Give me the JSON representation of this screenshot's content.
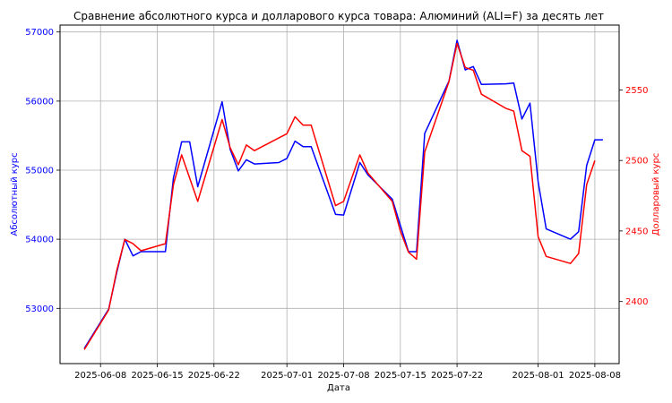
{
  "chart_data": {
    "type": "line",
    "title": "Сравнение абсолютного курса и долларового курса товара: Алюминий (ALI=F) за десять лет",
    "xlabel": "Дата",
    "ylabel_left": "Абсолютный курс",
    "ylabel_right": "Долларовый курс",
    "grid": true,
    "x_ticks": [
      "2025-06-08",
      "2025-06-15",
      "2025-06-22",
      "2025-07-01",
      "2025-07-08",
      "2025-07-15",
      "2025-07-22",
      "2025-08-01",
      "2025-08-08"
    ],
    "y_left_ticks": [
      53000,
      54000,
      55000,
      56000,
      57000
    ],
    "y_right_ticks": [
      2400,
      2450,
      2500,
      2550
    ],
    "y_left_lim": [
      52200,
      57100
    ],
    "y_right_lim": [
      2356,
      2596
    ],
    "series": [
      {
        "name": "Абсолютный курс",
        "axis": "left",
        "color": "#0000ff",
        "points": [
          [
            "2025-06-06",
            52420
          ],
          [
            "2025-06-09",
            52990
          ],
          [
            "2025-06-10",
            53520
          ],
          [
            "2025-06-11",
            54000
          ],
          [
            "2025-06-12",
            53760
          ],
          [
            "2025-06-13",
            53820
          ],
          [
            "2025-06-16",
            53820
          ],
          [
            "2025-06-17",
            54890
          ],
          [
            "2025-06-18",
            55410
          ],
          [
            "2025-06-19",
            55410
          ],
          [
            "2025-06-20",
            54760
          ],
          [
            "2025-06-23",
            55990
          ],
          [
            "2025-06-24",
            55300
          ],
          [
            "2025-06-25",
            54990
          ],
          [
            "2025-06-26",
            55150
          ],
          [
            "2025-06-27",
            55090
          ],
          [
            "2025-06-30",
            55110
          ],
          [
            "2025-07-01",
            55170
          ],
          [
            "2025-07-02",
            55420
          ],
          [
            "2025-07-03",
            55340
          ],
          [
            "2025-07-04",
            55340
          ],
          [
            "2025-07-07",
            54360
          ],
          [
            "2025-07-08",
            54350
          ],
          [
            "2025-07-10",
            55110
          ],
          [
            "2025-07-11",
            54930
          ],
          [
            "2025-07-14",
            54580
          ],
          [
            "2025-07-16",
            53820
          ],
          [
            "2025-07-17",
            53820
          ],
          [
            "2025-07-18",
            55530
          ],
          [
            "2025-07-21",
            56290
          ],
          [
            "2025-07-22",
            56880
          ],
          [
            "2025-07-23",
            56450
          ],
          [
            "2025-07-24",
            56500
          ],
          [
            "2025-07-25",
            56240
          ],
          [
            "2025-07-28",
            56250
          ],
          [
            "2025-07-29",
            56260
          ],
          [
            "2025-07-30",
            55740
          ],
          [
            "2025-07-31",
            55970
          ],
          [
            "2025-08-01",
            54830
          ],
          [
            "2025-08-02",
            54150
          ],
          [
            "2025-08-05",
            54000
          ],
          [
            "2025-08-06",
            54110
          ],
          [
            "2025-08-07",
            55070
          ],
          [
            "2025-08-08",
            55440
          ],
          [
            "2025-08-09",
            55440
          ]
        ]
      },
      {
        "name": "Долларовый курс",
        "axis": "right",
        "color": "#ff0000",
        "points": [
          [
            "2025-06-06",
            2366
          ],
          [
            "2025-06-09",
            2394
          ],
          [
            "2025-06-10",
            2422
          ],
          [
            "2025-06-11",
            2444
          ],
          [
            "2025-06-12",
            2441
          ],
          [
            "2025-06-13",
            2436
          ],
          [
            "2025-06-16",
            2441
          ],
          [
            "2025-06-17",
            2483
          ],
          [
            "2025-06-18",
            2504
          ],
          [
            "2025-06-20",
            2471
          ],
          [
            "2025-06-23",
            2529
          ],
          [
            "2025-06-24",
            2509
          ],
          [
            "2025-06-25",
            2497
          ],
          [
            "2025-06-26",
            2511
          ],
          [
            "2025-06-27",
            2507
          ],
          [
            "2025-07-01",
            2519
          ],
          [
            "2025-07-02",
            2531
          ],
          [
            "2025-07-03",
            2525
          ],
          [
            "2025-07-04",
            2525
          ],
          [
            "2025-07-07",
            2468
          ],
          [
            "2025-07-08",
            2471
          ],
          [
            "2025-07-10",
            2504
          ],
          [
            "2025-07-11",
            2491
          ],
          [
            "2025-07-14",
            2471
          ],
          [
            "2025-07-15",
            2450
          ],
          [
            "2025-07-16",
            2435
          ],
          [
            "2025-07-17",
            2430
          ],
          [
            "2025-07-18",
            2506
          ],
          [
            "2025-07-21",
            2556
          ],
          [
            "2025-07-22",
            2583
          ],
          [
            "2025-07-23",
            2566
          ],
          [
            "2025-07-24",
            2564
          ],
          [
            "2025-07-25",
            2547
          ],
          [
            "2025-07-28",
            2537
          ],
          [
            "2025-07-29",
            2535
          ],
          [
            "2025-07-30",
            2507
          ],
          [
            "2025-07-31",
            2503
          ],
          [
            "2025-08-01",
            2446
          ],
          [
            "2025-08-02",
            2432
          ],
          [
            "2025-08-05",
            2427
          ],
          [
            "2025-08-06",
            2434
          ],
          [
            "2025-08-07",
            2483
          ],
          [
            "2025-08-08",
            2500
          ]
        ]
      }
    ]
  }
}
